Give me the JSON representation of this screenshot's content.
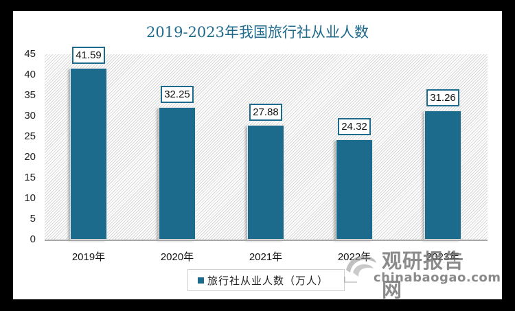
{
  "chart_data": {
    "type": "bar",
    "title": "2019-2023年我国旅行社从业人数",
    "categories": [
      "2019年",
      "2020年",
      "2021年",
      "2022年",
      "2023年"
    ],
    "series": [
      {
        "name": "旅行社从业人数（万人）",
        "values": [
          41.59,
          32.25,
          27.88,
          24.32,
          31.26
        ],
        "color": "#1c6a8c"
      }
    ],
    "value_labels": [
      "41.59",
      "32.25",
      "27.88",
      "24.32",
      "31.26"
    ],
    "xlabel": "",
    "ylabel": "",
    "ylim": [
      0,
      45
    ],
    "yticks": [
      "0",
      "5",
      "10",
      "15",
      "20",
      "25",
      "30",
      "35",
      "40",
      "45"
    ],
    "grid": false,
    "legend_position": "bottom"
  },
  "watermark": {
    "cn": "观研报告网",
    "en": "chinabaogao.com"
  },
  "colors": {
    "title": "#1f6b8e",
    "bar": "#1c6a8c"
  }
}
